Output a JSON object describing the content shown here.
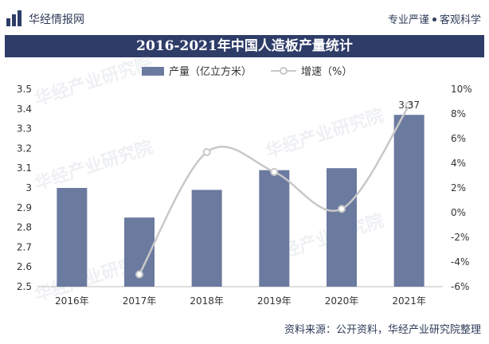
{
  "header": {
    "brand": "华经情报网",
    "slogan_left": "专业严谨",
    "slogan_right": "客观科学"
  },
  "title": "2016-2021年中国人造板产量统计",
  "footer": "资料来源：公开资料，华经产业研究院整理",
  "watermark": "华经产业研究院",
  "colors": {
    "bar": "#6b7a9f",
    "line": "#c8c8c8",
    "title_band": "#2e3c68",
    "brand_text": "#2f3b59"
  },
  "chart_data": {
    "type": "bar",
    "categories": [
      "2016年",
      "2017年",
      "2018年",
      "2019年",
      "2020年",
      "2021年"
    ],
    "series": [
      {
        "name": "产量（亿立方米）",
        "type": "bar",
        "axis": "left",
        "values": [
          3.0,
          2.85,
          2.99,
          3.09,
          3.1,
          3.37
        ]
      },
      {
        "name": "增速（%）",
        "type": "line",
        "axis": "right",
        "smooth": true,
        "values": [
          null,
          -5.0,
          4.9,
          3.3,
          0.3,
          8.7
        ]
      }
    ],
    "data_labels": [
      {
        "series": 0,
        "index": 5,
        "text": "3.37"
      }
    ],
    "y_left": {
      "lim": [
        2.5,
        3.5
      ],
      "ticks": [
        "2.5",
        "2.6",
        "2.7",
        "2.8",
        "2.9",
        "3",
        "3.1",
        "3.2",
        "3.3",
        "3.4",
        "3.5"
      ]
    },
    "y_right": {
      "lim": [
        -6,
        10
      ],
      "ticks": [
        "-6%",
        "-4%",
        "-2%",
        "0%",
        "2%",
        "4%",
        "6%",
        "8%",
        "10%"
      ]
    },
    "legend_position": "top-center",
    "grid": false
  }
}
